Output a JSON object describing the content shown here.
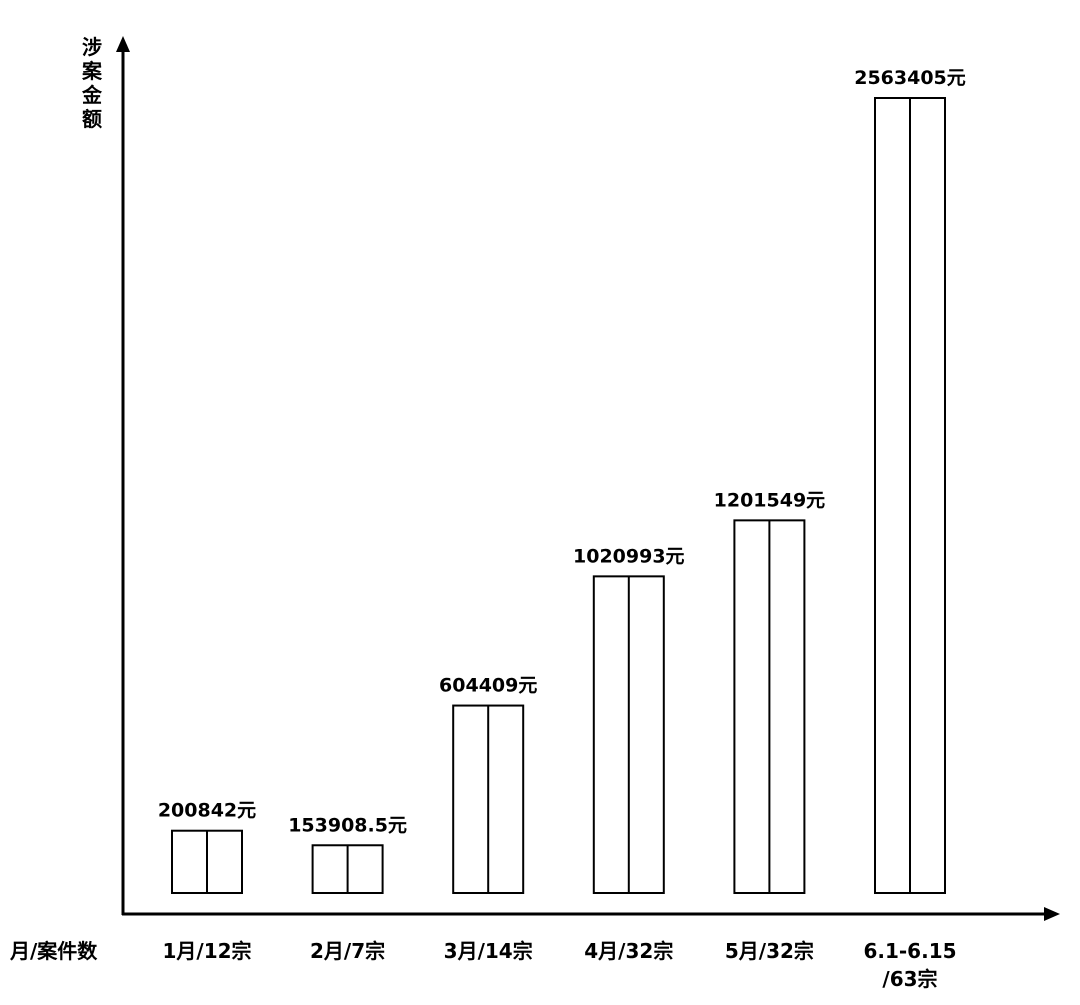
{
  "chart_data": {
    "type": "bar",
    "title": "",
    "xlabel": "月/案件数",
    "ylabel": "涉案金额",
    "categories": [
      [
        "1月/12宗"
      ],
      [
        "2月/7宗"
      ],
      [
        "3月/14宗"
      ],
      [
        "4月/32宗"
      ],
      [
        "5月/32宗"
      ],
      [
        "6.1-6.15",
        "/63宗"
      ]
    ],
    "values": [
      200842,
      153908.5,
      604409,
      1020993,
      1201549,
      2563405
    ],
    "data_labels": [
      "200842元",
      "153908.5元",
      "604409元",
      "1020993元",
      "1201549元",
      "2563405元"
    ],
    "grid": false,
    "legend": "none",
    "colors": {
      "bar_fill": "#ffffff",
      "bar_stroke": "#000000",
      "axis": "#000000"
    }
  }
}
